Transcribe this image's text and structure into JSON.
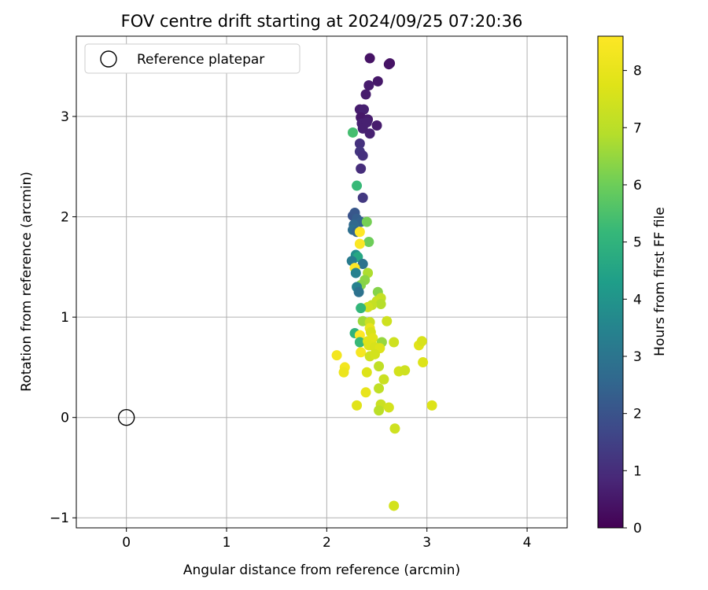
{
  "chart_data": {
    "type": "scatter",
    "title": "FOV centre drift starting at 2024/09/25 07:20:36",
    "xlabel": "Angular distance from reference (arcmin)",
    "ylabel": "Rotation from reference (arcmin)",
    "xlim": [
      -0.5,
      4.4
    ],
    "ylim": [
      -1.1,
      3.8
    ],
    "xticks": [
      0,
      1,
      2,
      3,
      4
    ],
    "yticks": [
      -1,
      0,
      1,
      2,
      3
    ],
    "xtick_labels": [
      "0",
      "1",
      "2",
      "3",
      "4"
    ],
    "ytick_labels": [
      "−1",
      "0",
      "1",
      "2",
      "3"
    ],
    "grid": true,
    "legend": {
      "position": "top-left",
      "label": "Reference platepar"
    },
    "reference_point": {
      "x": 0,
      "y": 0
    },
    "colorbar": {
      "label": "Hours from first FF file",
      "colormap": "viridis",
      "range": [
        0,
        8.6
      ],
      "ticks": [
        0,
        1,
        2,
        3,
        4,
        5,
        6,
        7,
        8
      ]
    },
    "points": [
      {
        "x": 2.43,
        "y": 3.58,
        "c": 0.4
      },
      {
        "x": 2.62,
        "y": 3.52,
        "c": 0.4
      },
      {
        "x": 2.63,
        "y": 3.53,
        "c": 0.4
      },
      {
        "x": 2.51,
        "y": 3.35,
        "c": 0.5
      },
      {
        "x": 2.42,
        "y": 3.31,
        "c": 0.6
      },
      {
        "x": 2.39,
        "y": 3.22,
        "c": 0.6
      },
      {
        "x": 2.33,
        "y": 3.07,
        "c": 0.6
      },
      {
        "x": 2.37,
        "y": 3.07,
        "c": 0.7
      },
      {
        "x": 2.34,
        "y": 2.99,
        "c": 0.5
      },
      {
        "x": 2.41,
        "y": 2.97,
        "c": 0.6
      },
      {
        "x": 2.35,
        "y": 2.93,
        "c": 0.7
      },
      {
        "x": 2.4,
        "y": 2.94,
        "c": 0.7
      },
      {
        "x": 2.5,
        "y": 2.91,
        "c": 0.6
      },
      {
        "x": 2.36,
        "y": 2.88,
        "c": 0.7
      },
      {
        "x": 2.43,
        "y": 2.83,
        "c": 0.7
      },
      {
        "x": 2.33,
        "y": 2.73,
        "c": 1.1
      },
      {
        "x": 2.33,
        "y": 2.65,
        "c": 1.2
      },
      {
        "x": 2.36,
        "y": 2.61,
        "c": 1.1
      },
      {
        "x": 2.34,
        "y": 2.48,
        "c": 1.0
      },
      {
        "x": 2.36,
        "y": 2.19,
        "c": 1.3
      },
      {
        "x": 2.26,
        "y": 2.84,
        "c": 5.4
      },
      {
        "x": 2.3,
        "y": 2.31,
        "c": 5.2
      },
      {
        "x": 2.26,
        "y": 2.01,
        "c": 2.0
      },
      {
        "x": 2.28,
        "y": 2.04,
        "c": 2.1
      },
      {
        "x": 2.3,
        "y": 1.98,
        "c": 2.3
      },
      {
        "x": 2.34,
        "y": 1.95,
        "c": 2.4
      },
      {
        "x": 2.4,
        "y": 1.95,
        "c": 6.1
      },
      {
        "x": 2.27,
        "y": 1.92,
        "c": 2.6
      },
      {
        "x": 2.26,
        "y": 1.87,
        "c": 2.8
      },
      {
        "x": 2.3,
        "y": 1.85,
        "c": 2.5
      },
      {
        "x": 2.33,
        "y": 1.85,
        "c": 8.6
      },
      {
        "x": 2.42,
        "y": 1.75,
        "c": 6.0
      },
      {
        "x": 2.33,
        "y": 1.73,
        "c": 8.5
      },
      {
        "x": 2.29,
        "y": 1.62,
        "c": 3.8
      },
      {
        "x": 2.31,
        "y": 1.6,
        "c": 4.6
      },
      {
        "x": 2.25,
        "y": 1.56,
        "c": 3.2
      },
      {
        "x": 2.36,
        "y": 1.53,
        "c": 2.9
      },
      {
        "x": 2.28,
        "y": 1.49,
        "c": 8.6
      },
      {
        "x": 2.29,
        "y": 1.44,
        "c": 3.4
      },
      {
        "x": 2.41,
        "y": 1.44,
        "c": 6.8
      },
      {
        "x": 2.38,
        "y": 1.37,
        "c": 6.4
      },
      {
        "x": 2.34,
        "y": 1.32,
        "c": 6.3
      },
      {
        "x": 2.3,
        "y": 1.3,
        "c": 3.4
      },
      {
        "x": 2.32,
        "y": 1.25,
        "c": 2.9
      },
      {
        "x": 2.51,
        "y": 1.25,
        "c": 6.3
      },
      {
        "x": 2.54,
        "y": 1.19,
        "c": 7.2
      },
      {
        "x": 2.5,
        "y": 1.16,
        "c": 7.3
      },
      {
        "x": 2.54,
        "y": 1.13,
        "c": 6.9
      },
      {
        "x": 2.45,
        "y": 1.12,
        "c": 7.2
      },
      {
        "x": 2.41,
        "y": 1.1,
        "c": 7.4
      },
      {
        "x": 2.34,
        "y": 1.09,
        "c": 5.1
      },
      {
        "x": 2.36,
        "y": 0.96,
        "c": 6.6
      },
      {
        "x": 2.43,
        "y": 0.95,
        "c": 7.3
      },
      {
        "x": 2.6,
        "y": 0.96,
        "c": 7.4
      },
      {
        "x": 2.43,
        "y": 0.89,
        "c": 8.0
      },
      {
        "x": 2.44,
        "y": 0.85,
        "c": 7.6
      },
      {
        "x": 2.28,
        "y": 0.84,
        "c": 5.0
      },
      {
        "x": 2.33,
        "y": 0.82,
        "c": 8.6
      },
      {
        "x": 2.46,
        "y": 0.79,
        "c": 7.8
      },
      {
        "x": 2.33,
        "y": 0.75,
        "c": 5.2
      },
      {
        "x": 2.41,
        "y": 0.76,
        "c": 7.8
      },
      {
        "x": 2.55,
        "y": 0.75,
        "c": 6.5
      },
      {
        "x": 2.67,
        "y": 0.75,
        "c": 7.4
      },
      {
        "x": 2.42,
        "y": 0.72,
        "c": 7.7
      },
      {
        "x": 2.48,
        "y": 0.7,
        "c": 7.6
      },
      {
        "x": 2.53,
        "y": 0.69,
        "c": 7.7
      },
      {
        "x": 2.1,
        "y": 0.62,
        "c": 8.3
      },
      {
        "x": 2.34,
        "y": 0.65,
        "c": 8.4
      },
      {
        "x": 2.43,
        "y": 0.61,
        "c": 7.4
      },
      {
        "x": 2.48,
        "y": 0.63,
        "c": 7.5
      },
      {
        "x": 2.92,
        "y": 0.72,
        "c": 7.8
      },
      {
        "x": 2.95,
        "y": 0.76,
        "c": 7.6
      },
      {
        "x": 2.18,
        "y": 0.5,
        "c": 8.3
      },
      {
        "x": 2.52,
        "y": 0.51,
        "c": 7.1
      },
      {
        "x": 2.17,
        "y": 0.45,
        "c": 8.1
      },
      {
        "x": 2.4,
        "y": 0.45,
        "c": 7.7
      },
      {
        "x": 2.72,
        "y": 0.46,
        "c": 7.5
      },
      {
        "x": 2.78,
        "y": 0.47,
        "c": 7.4
      },
      {
        "x": 2.96,
        "y": 0.55,
        "c": 7.7
      },
      {
        "x": 2.57,
        "y": 0.38,
        "c": 7.3
      },
      {
        "x": 2.52,
        "y": 0.29,
        "c": 7.1
      },
      {
        "x": 2.39,
        "y": 0.25,
        "c": 8.0
      },
      {
        "x": 2.3,
        "y": 0.12,
        "c": 7.8
      },
      {
        "x": 2.54,
        "y": 0.13,
        "c": 7.3
      },
      {
        "x": 2.52,
        "y": 0.07,
        "c": 7.0
      },
      {
        "x": 2.62,
        "y": 0.1,
        "c": 7.5
      },
      {
        "x": 3.05,
        "y": 0.12,
        "c": 7.7
      },
      {
        "x": 2.68,
        "y": -0.11,
        "c": 7.4
      },
      {
        "x": 2.67,
        "y": -0.88,
        "c": 7.5
      }
    ]
  }
}
